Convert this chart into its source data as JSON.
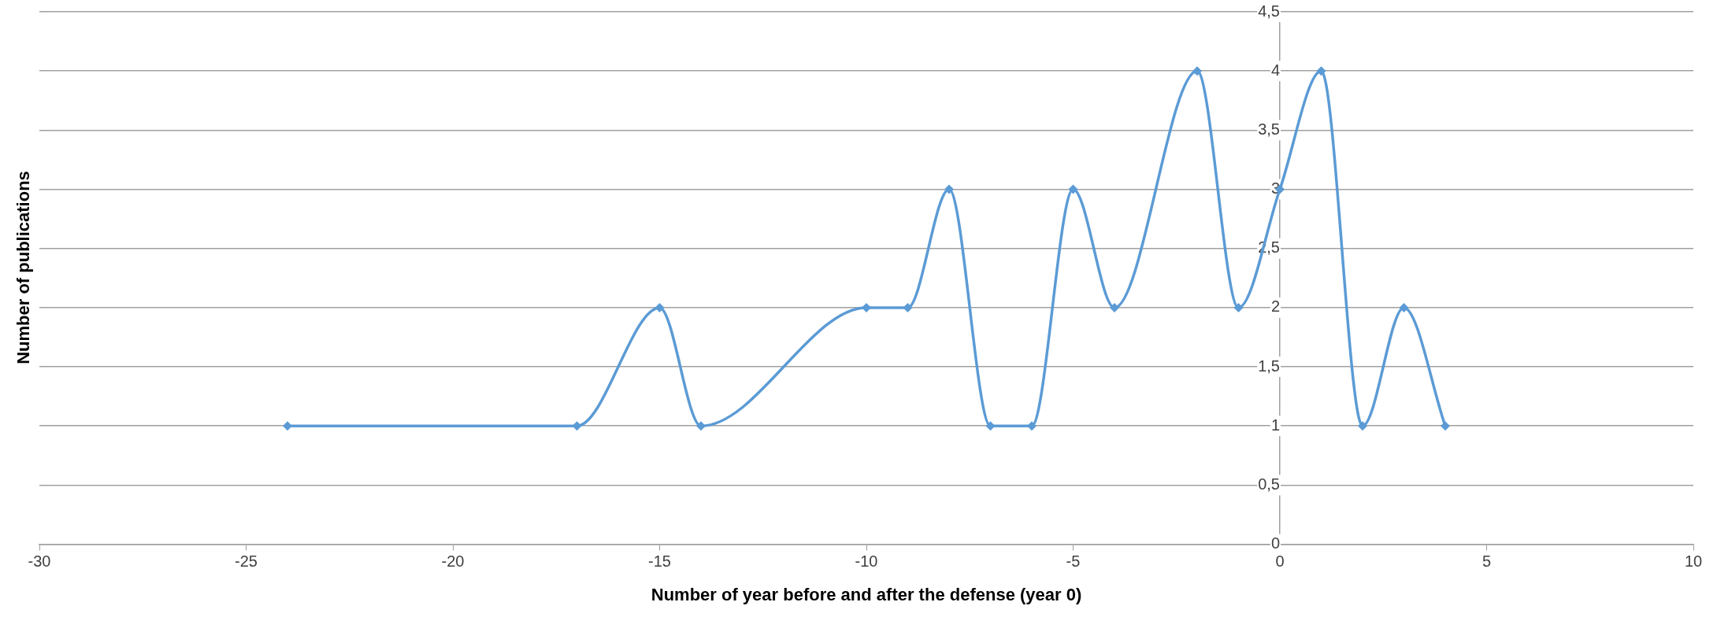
{
  "chart_data": {
    "type": "line",
    "xlabel": "Number of year before and after the defense (year 0)",
    "ylabel": "Number of publications",
    "x": [
      -24,
      -17,
      -15,
      -14,
      -10,
      -9,
      -8,
      -7,
      -6,
      -5,
      -4,
      -2,
      -1,
      0,
      1,
      2,
      3,
      4
    ],
    "values": [
      1,
      1,
      2,
      1,
      2,
      2,
      3,
      1,
      1,
      3,
      2,
      4,
      2,
      3,
      4,
      1,
      2,
      1
    ],
    "color": "#5b9bd5",
    "marker": "diamond",
    "line_style": "solid",
    "grid": "y",
    "legend": false,
    "xlim": [
      -30,
      10
    ],
    "xticks": [
      -30,
      -25,
      -20,
      -15,
      -10,
      -5,
      0,
      5,
      10
    ],
    "ylim": [
      0,
      4.5
    ],
    "yticks": [
      0,
      {
        "value": 0.5,
        "label": "0,5"
      },
      1,
      {
        "value": 1.5,
        "label": "1,5"
      },
      2,
      {
        "value": 2.5,
        "label": "2,5"
      },
      3,
      {
        "value": 3.5,
        "label": "3,5"
      },
      4,
      {
        "value": 4.5,
        "label": "4,5"
      }
    ]
  }
}
